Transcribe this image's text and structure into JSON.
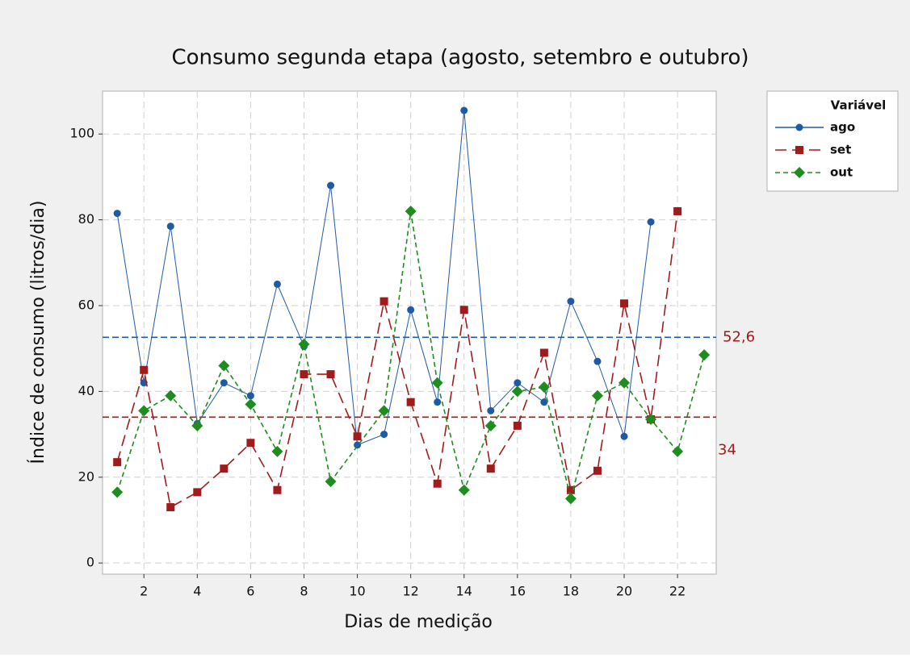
{
  "chart_data": {
    "type": "line",
    "title": "Consumo segunda etapa (agosto, setembro e outubro)",
    "x_label": "Dias de medição",
    "y_label": "Índice de consumo (litros/dia)",
    "legend_title": "Variável",
    "legend_position": "outside-top-right",
    "grid": true,
    "xlim": [
      0.45,
      23.45
    ],
    "ylim": [
      -2.6,
      110
    ],
    "xticks": [
      2,
      4,
      6,
      8,
      10,
      12,
      14,
      16,
      18,
      20,
      22
    ],
    "yticks": [
      0,
      20,
      40,
      60,
      80,
      100
    ],
    "series": [
      {
        "name": "ago",
        "color": "#1f5aa6",
        "marker": "circle",
        "dash": "solid",
        "x": [
          1,
          2,
          3,
          4,
          5,
          6,
          7,
          8,
          9,
          10,
          11,
          12,
          13,
          14,
          15,
          16,
          17,
          18,
          19,
          20,
          21
        ],
        "values": [
          81.5,
          42,
          78.5,
          32.5,
          42,
          39,
          65,
          50.5,
          88,
          27.5,
          30,
          59,
          37.5,
          105.5,
          35.5,
          42,
          37.5,
          61,
          47,
          29.5,
          79.5
        ]
      },
      {
        "name": "set",
        "color": "#a01c1c",
        "marker": "square",
        "dash": "long",
        "x": [
          1,
          2,
          3,
          4,
          5,
          6,
          7,
          8,
          9,
          10,
          11,
          12,
          13,
          14,
          15,
          16,
          17,
          18,
          19,
          20,
          21,
          22
        ],
        "values": [
          23.5,
          45,
          13,
          16.5,
          22,
          28,
          17,
          44,
          44,
          29.5,
          61,
          37.5,
          18.5,
          59,
          22,
          32,
          49,
          17,
          21.5,
          60.5,
          33.5,
          82
        ]
      },
      {
        "name": "out",
        "color": "#1f8c1f",
        "marker": "diamond",
        "dash": "short",
        "x": [
          1,
          2,
          3,
          4,
          5,
          6,
          7,
          8,
          9,
          11,
          12,
          13,
          14,
          15,
          16,
          17,
          18,
          19,
          20,
          21,
          22,
          23
        ],
        "values": [
          16.5,
          35.5,
          39,
          32,
          46,
          37,
          26,
          51,
          19,
          35.5,
          82,
          42,
          17,
          32,
          40,
          41,
          15,
          39,
          42,
          33.5,
          26,
          48.5
        ]
      }
    ],
    "reference_lines": [
      {
        "value": 52.6,
        "label": "52,6",
        "color": "#1f5aa6",
        "label_color": "#a01c1c"
      },
      {
        "value": 34,
        "label": "34",
        "color": "#a01c1c",
        "label_color": "#a01c1c"
      }
    ]
  }
}
